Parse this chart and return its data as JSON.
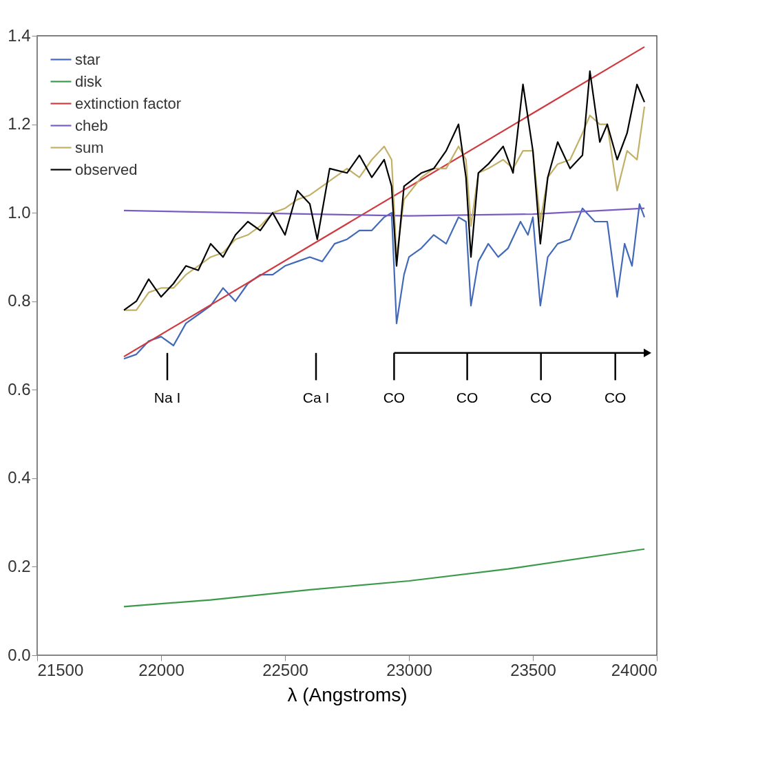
{
  "chart_data": {
    "type": "line",
    "xlabel": "λ (Angstroms)",
    "xlim": [
      21500,
      24000
    ],
    "xticks": [
      21500,
      22000,
      22500,
      23000,
      23500,
      24000
    ],
    "ylim": [
      0,
      1.4
    ],
    "yticks": [
      {
        "value": 0,
        "label": "0.0"
      },
      0.2,
      0.4,
      0.6,
      0.8,
      {
        "value": 1,
        "label": "1.0"
      },
      1.2,
      1.4
    ],
    "grid": false,
    "legend": "top left",
    "line_style": "solid",
    "marker": "none",
    "series": [
      {
        "name": "star",
        "color": "#4169b8",
        "x": [
          21850,
          21900,
          21950,
          22000,
          22050,
          22100,
          22150,
          22200,
          22250,
          22300,
          22350,
          22400,
          22450,
          22500,
          22550,
          22600,
          22650,
          22700,
          22750,
          22800,
          22850,
          22900,
          22930,
          22950,
          22980,
          23000,
          23050,
          23100,
          23150,
          23200,
          23230,
          23250,
          23280,
          23320,
          23360,
          23400,
          23450,
          23480,
          23500,
          23530,
          23560,
          23600,
          23650,
          23700,
          23750,
          23800,
          23840,
          23870,
          23900,
          23930,
          23950
        ],
        "values": [
          0.67,
          0.68,
          0.71,
          0.72,
          0.7,
          0.75,
          0.77,
          0.79,
          0.83,
          0.8,
          0.84,
          0.86,
          0.86,
          0.88,
          0.89,
          0.9,
          0.89,
          0.93,
          0.94,
          0.96,
          0.96,
          0.99,
          1.0,
          0.75,
          0.86,
          0.9,
          0.92,
          0.95,
          0.93,
          0.99,
          0.98,
          0.79,
          0.89,
          0.93,
          0.9,
          0.92,
          0.98,
          0.95,
          0.99,
          0.79,
          0.9,
          0.93,
          0.94,
          1.01,
          0.98,
          0.98,
          0.81,
          0.93,
          0.88,
          1.02,
          0.99
        ]
      },
      {
        "name": "disk",
        "color": "#3a9a4a",
        "x": [
          21850,
          22200,
          22600,
          23000,
          23400,
          23950
        ],
        "values": [
          0.11,
          0.125,
          0.148,
          0.168,
          0.195,
          0.24
        ]
      },
      {
        "name": "extinction factor",
        "color": "#d0393f",
        "x": [
          21850,
          23950
        ],
        "values": [
          0.675,
          1.375
        ]
      },
      {
        "name": "cheb",
        "color": "#7a5cc0",
        "x": [
          21850,
          22500,
          23000,
          23500,
          23950
        ],
        "values": [
          1.005,
          0.998,
          0.993,
          0.997,
          1.01
        ]
      },
      {
        "name": "sum",
        "color": "#c2b067",
        "x": [
          21850,
          21900,
          21950,
          22000,
          22050,
          22100,
          22150,
          22200,
          22250,
          22300,
          22350,
          22400,
          22450,
          22500,
          22550,
          22600,
          22650,
          22700,
          22750,
          22800,
          22850,
          22900,
          22930,
          22950,
          22980,
          23050,
          23100,
          23150,
          23200,
          23230,
          23250,
          23280,
          23320,
          23380,
          23420,
          23460,
          23500,
          23530,
          23560,
          23600,
          23650,
          23700,
          23730,
          23770,
          23800,
          23840,
          23880,
          23920,
          23950
        ],
        "values": [
          0.78,
          0.78,
          0.82,
          0.83,
          0.83,
          0.86,
          0.88,
          0.9,
          0.91,
          0.94,
          0.95,
          0.97,
          1.0,
          1.01,
          1.03,
          1.04,
          1.06,
          1.08,
          1.1,
          1.08,
          1.12,
          1.15,
          1.12,
          0.9,
          1.03,
          1.08,
          1.1,
          1.1,
          1.15,
          1.12,
          0.97,
          1.09,
          1.1,
          1.12,
          1.1,
          1.14,
          1.14,
          0.98,
          1.08,
          1.11,
          1.12,
          1.18,
          1.22,
          1.2,
          1.2,
          1.05,
          1.14,
          1.12,
          1.24
        ]
      },
      {
        "name": "observed",
        "color": "#000000",
        "x": [
          21850,
          21900,
          21950,
          22000,
          22050,
          22100,
          22150,
          22200,
          22250,
          22300,
          22350,
          22400,
          22450,
          22500,
          22550,
          22600,
          22630,
          22680,
          22750,
          22800,
          22850,
          22900,
          22930,
          22950,
          22980,
          23050,
          23100,
          23150,
          23200,
          23230,
          23250,
          23280,
          23320,
          23380,
          23420,
          23460,
          23500,
          23530,
          23560,
          23600,
          23650,
          23700,
          23730,
          23770,
          23800,
          23840,
          23880,
          23920,
          23950
        ],
        "values": [
          0.78,
          0.8,
          0.85,
          0.81,
          0.84,
          0.88,
          0.87,
          0.93,
          0.9,
          0.95,
          0.98,
          0.96,
          1.0,
          0.95,
          1.05,
          1.02,
          0.94,
          1.1,
          1.09,
          1.13,
          1.08,
          1.12,
          1.06,
          0.88,
          1.06,
          1.09,
          1.1,
          1.14,
          1.2,
          1.08,
          0.9,
          1.09,
          1.11,
          1.15,
          1.09,
          1.29,
          1.14,
          0.93,
          1.08,
          1.16,
          1.1,
          1.13,
          1.32,
          1.16,
          1.2,
          1.12,
          1.18,
          1.29,
          1.25
        ]
      }
    ],
    "annotations": [
      "Na I",
      "Ca I",
      "CO",
      "CO",
      "CO",
      "CO"
    ]
  }
}
